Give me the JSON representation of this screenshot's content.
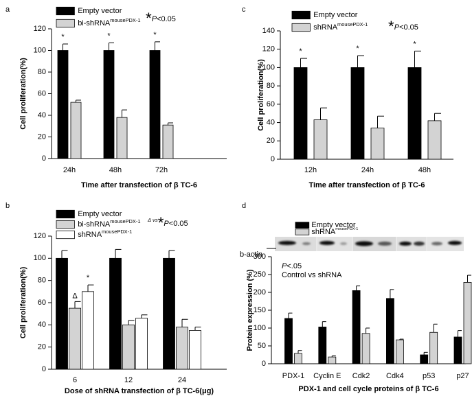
{
  "chart_data": [
    {
      "type": "bar",
      "panel": "a",
      "note": [
        {
          "text": "*",
          "big": true
        },
        {
          "text": "P",
          "italic": true
        },
        {
          "text": "<0.05"
        }
      ],
      "ylabel": "Cell proliferation(%)",
      "xlabel": "Time after transfection of β TC-6",
      "categories": [
        "24h",
        "48h",
        "72h"
      ],
      "series": [
        {
          "name": "Empty vector",
          "color": "#000000",
          "values": [
            100,
            100,
            100
          ],
          "errors": [
            6,
            7,
            8
          ],
          "significance": [
            "*",
            "*",
            "*"
          ]
        },
        {
          "name": "bi-shRNA",
          "name_superscript": "mousePDX-1",
          "color": "#d3d3d3",
          "values": [
            52,
            38,
            31
          ],
          "errors": [
            2,
            7,
            2
          ]
        }
      ],
      "ylim": [
        0,
        120
      ],
      "yticks": [
        0,
        20,
        40,
        60,
        80,
        100,
        120
      ]
    },
    {
      "type": "bar",
      "panel": "c",
      "note": [
        {
          "text": "*",
          "big": true
        },
        {
          "text": "P",
          "italic": true
        },
        {
          "text": "<0.05"
        }
      ],
      "ylabel": "Cell proliferation(%)",
      "xlabel": "Time after transfection of β TC-6",
      "categories": [
        "12h",
        "24h",
        "48h"
      ],
      "series": [
        {
          "name": "Empty vector",
          "color": "#000000",
          "values": [
            100,
            100,
            100
          ],
          "errors": [
            10,
            13,
            18
          ],
          "significance": [
            "*",
            "*",
            "*"
          ]
        },
        {
          "name": "shRNA",
          "name_superscript": "mousePDX-1",
          "color": "#d3d3d3",
          "values": [
            43,
            34,
            42
          ],
          "errors": [
            13,
            13,
            8
          ]
        }
      ],
      "ylim": [
        0,
        140
      ],
      "yticks": [
        0,
        20,
        40,
        60,
        80,
        100,
        120,
        140
      ]
    },
    {
      "type": "bar",
      "panel": "b",
      "note": [
        {
          "text": "Δ vs",
          "italic": true,
          "small": true
        },
        {
          "text": "*",
          "big": true
        },
        {
          "text": "P",
          "italic": true
        },
        {
          "text": "<0.05"
        }
      ],
      "ylabel": "Cell proliferation(%)",
      "xlabel": "Dose of shRNA transfection of β TC-6(μg)",
      "categories": [
        "6",
        "12",
        "24"
      ],
      "series": [
        {
          "name": "Empty vector",
          "color": "#000000",
          "values": [
            100,
            100,
            100
          ],
          "errors": [
            7,
            8,
            7
          ]
        },
        {
          "name": "bi-shRNA",
          "name_superscript": "mousePDX-1",
          "color": "#d3d3d3",
          "values": [
            55,
            40,
            38
          ],
          "errors": [
            6,
            4,
            7
          ],
          "significance": [
            "Δ",
            null,
            null
          ]
        },
        {
          "name": "shRNA",
          "name_superscript": "mousePDX-1",
          "color": "#ffffff",
          "values": [
            70,
            46,
            35
          ],
          "errors": [
            6,
            3,
            3
          ],
          "significance": [
            "*",
            null,
            null
          ]
        }
      ],
      "ylim": [
        0,
        120
      ],
      "yticks": [
        0,
        20,
        40,
        60,
        80,
        100,
        120
      ]
    },
    {
      "type": "bar",
      "panel": "d",
      "ylabel": "Protein expression (%)",
      "xlabel": "PDX-1 and cell cycle proteins of β TC-6",
      "blot_label": "b-actin",
      "stat_note": [
        {
          "text": "P",
          "italic": true
        },
        {
          "text": "<.05"
        }
      ],
      "stat_caption": "Control vs shRNA",
      "categories": [
        "PDX-1",
        "Cyclin E",
        "Cdk2",
        "Cdk4",
        "p53",
        "p27"
      ],
      "series": [
        {
          "name": "Empty vector",
          "color": "#000000",
          "values": [
            127,
            103,
            205,
            183,
            25,
            75
          ],
          "errors": [
            15,
            15,
            13,
            25,
            7,
            18
          ]
        },
        {
          "name": "shRNA",
          "name_superscript": "mousePDX-1",
          "color": "#d3d3d3",
          "values": [
            29,
            19,
            85,
            67,
            88,
            228
          ],
          "errors": [
            8,
            3,
            15,
            2,
            23,
            20
          ]
        }
      ],
      "ylim": [
        0,
        300
      ],
      "yticks": [
        0,
        50,
        100,
        150,
        200,
        250,
        300
      ]
    }
  ]
}
